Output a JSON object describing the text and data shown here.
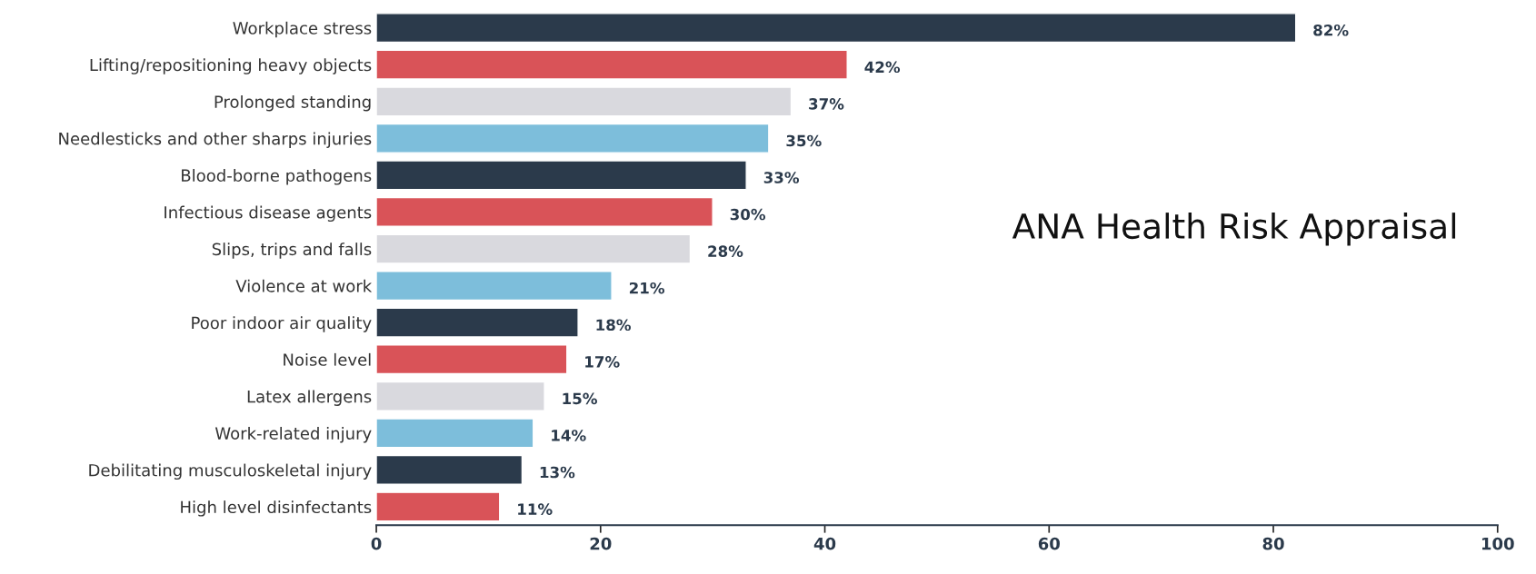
{
  "chart_data": {
    "type": "bar",
    "orientation": "horizontal",
    "categories": [
      "Workplace stress",
      "Lifting/repositioning heavy objects",
      "Prolonged standing",
      "Needlesticks and other sharps injuries",
      "Blood-borne pathogens",
      "Infectious disease agents",
      "Slips, trips and falls",
      "Violence at work",
      "Poor indoor air quality",
      "Noise level",
      "Latex allergens",
      "Work-related injury",
      "Debilitating musculoskeletal injury",
      "High level disinfectants"
    ],
    "values": [
      82,
      42,
      37,
      35,
      33,
      30,
      28,
      21,
      18,
      17,
      15,
      14,
      13,
      11
    ],
    "value_labels": [
      "82%",
      "42%",
      "37%",
      "35%",
      "33%",
      "30%",
      "28%",
      "21%",
      "18%",
      "17%",
      "15%",
      "14%",
      "13%",
      "11%"
    ],
    "colors": [
      "#2b3a4b",
      "#d95358",
      "#d9d9de",
      "#7dbedb",
      "#2b3a4b",
      "#d95358",
      "#d9d9de",
      "#7dbedb",
      "#2b3a4b",
      "#d95358",
      "#d9d9de",
      "#7dbedb",
      "#2b3a4b",
      "#d95358"
    ],
    "xlim": [
      0,
      100
    ],
    "xticks": [
      0,
      20,
      40,
      60,
      80,
      100
    ],
    "annotations": [
      "ANA Health Risk Appraisal"
    ],
    "grid": false,
    "legend": false
  }
}
